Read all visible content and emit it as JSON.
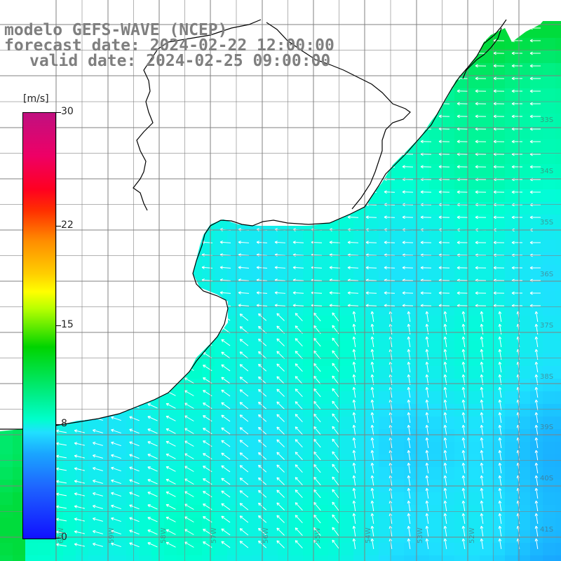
{
  "title": {
    "line1": "modelo GEFS-WAVE (NCEP)",
    "line2": "forecast date: 2024-02-22 12:00:00",
    "line3": "valid date: 2024-02-25 09:00:00"
  },
  "colorbar": {
    "unit": "[m/s]",
    "ticks": [
      "30",
      "22",
      "15",
      "8",
      "0"
    ],
    "tick_values": [
      30,
      22,
      15,
      8,
      0
    ]
  },
  "lat_labels": [
    "33S",
    "34S",
    "35S",
    "36S",
    "37S",
    "38S",
    "39S",
    "40S",
    "41S"
  ],
  "lon_labels": [
    "60W",
    "59W",
    "58W",
    "57W",
    "56W",
    "55W",
    "54W",
    "53W",
    "52W"
  ],
  "colors": {
    "land": "#ffffff",
    "coast": "#000000",
    "grid": "#808080",
    "arrow": "#ffffff"
  }
}
